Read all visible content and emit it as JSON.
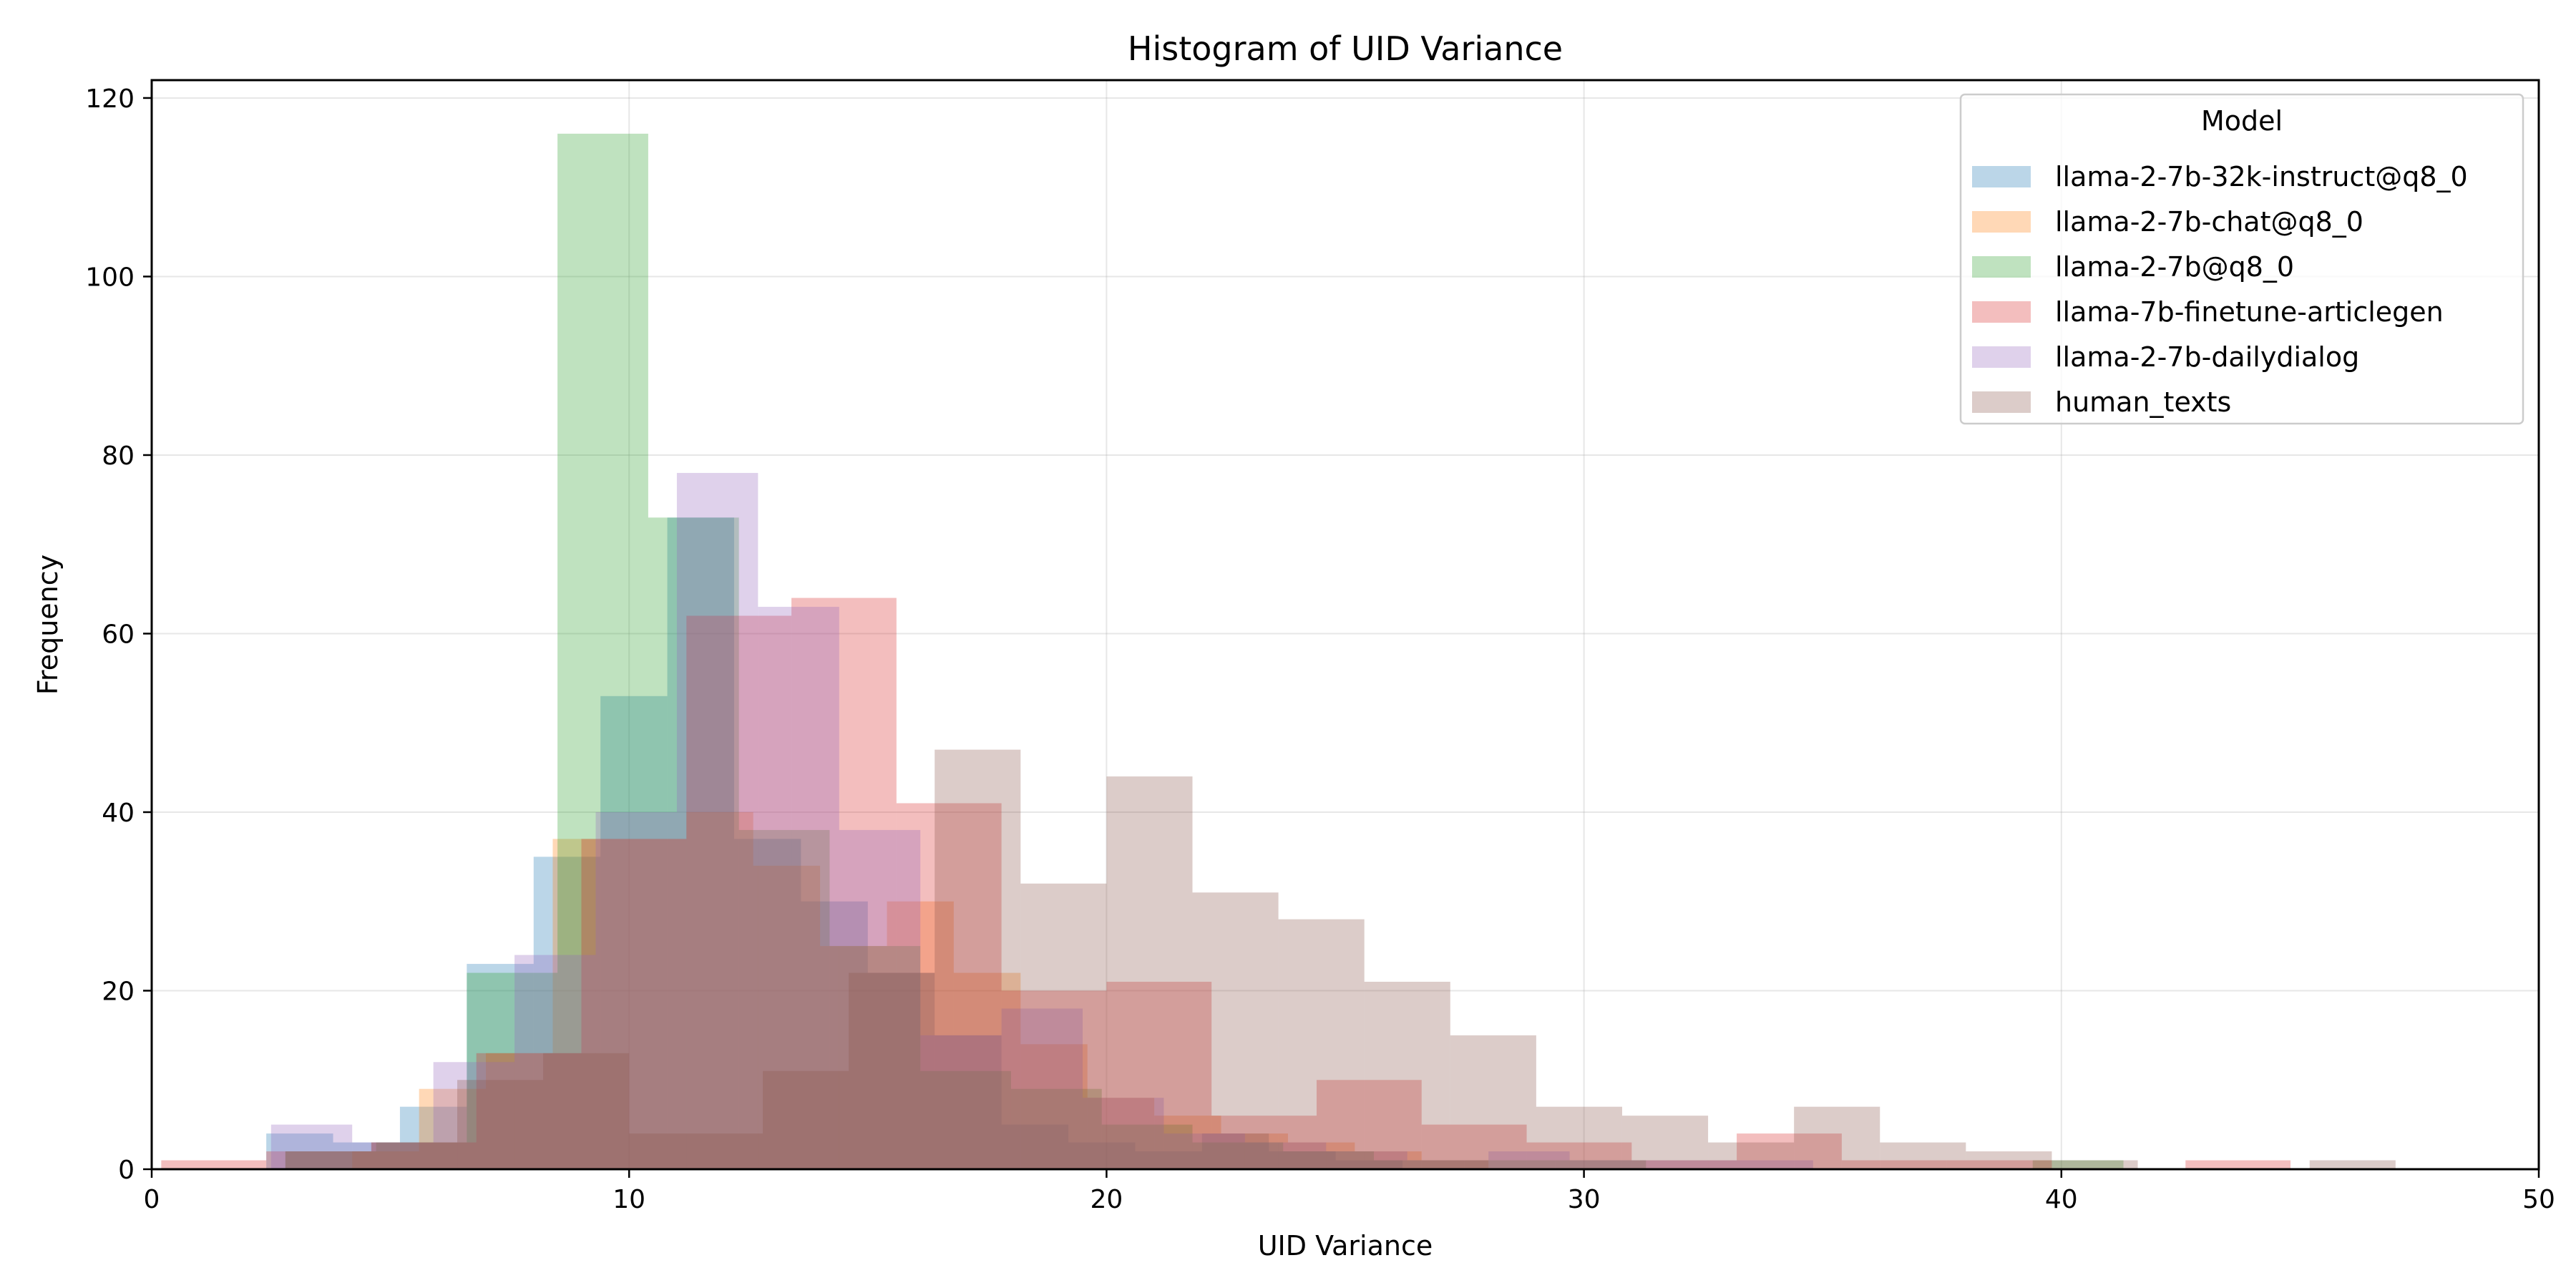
{
  "chart_data": {
    "type": "bar",
    "title": "Histogram of UID Variance",
    "xlabel": "UID Variance",
    "ylabel": "Frequency",
    "xlim": [
      0,
      50
    ],
    "ylim": [
      0,
      122
    ],
    "xticks": [
      0,
      10,
      20,
      30,
      40,
      50
    ],
    "yticks": [
      0,
      20,
      40,
      60,
      80,
      100,
      120
    ],
    "grid": true,
    "legend": {
      "title": "Model",
      "placement": "top-right"
    },
    "series": [
      {
        "name": "llama-2-7b-32k-instruct@q8_0",
        "color": "#1f77b4",
        "bins": [
          [
            2.4,
            3.8,
            4
          ],
          [
            3.8,
            5.2,
            3
          ],
          [
            5.2,
            6.6,
            7
          ],
          [
            6.6,
            8.0,
            23
          ],
          [
            8.0,
            9.4,
            35
          ],
          [
            9.4,
            10.8,
            53
          ],
          [
            10.8,
            12.2,
            73
          ],
          [
            12.2,
            13.6,
            37
          ],
          [
            13.6,
            15.0,
            30
          ],
          [
            15.0,
            16.4,
            22
          ],
          [
            16.4,
            17.8,
            15
          ],
          [
            17.8,
            19.2,
            5
          ],
          [
            19.2,
            20.6,
            3
          ],
          [
            20.6,
            22.0,
            2
          ],
          [
            22.0,
            23.4,
            4
          ],
          [
            23.4,
            24.8,
            2
          ],
          [
            24.8,
            26.2,
            1
          ]
        ]
      },
      {
        "name": "llama-2-7b-chat@q8_0",
        "color": "#ff7f0e",
        "bins": [
          [
            4.2,
            5.6,
            2
          ],
          [
            5.6,
            7.0,
            9
          ],
          [
            7.0,
            8.4,
            13
          ],
          [
            8.4,
            9.8,
            37
          ],
          [
            9.8,
            11.2,
            37
          ],
          [
            11.2,
            12.6,
            40
          ],
          [
            12.6,
            14.0,
            34
          ],
          [
            14.0,
            15.4,
            25
          ],
          [
            15.4,
            16.8,
            30
          ],
          [
            16.8,
            18.2,
            22
          ],
          [
            18.2,
            19.6,
            14
          ],
          [
            19.6,
            21.0,
            8
          ],
          [
            21.0,
            22.4,
            6
          ],
          [
            22.4,
            23.8,
            4
          ],
          [
            23.8,
            25.2,
            3
          ],
          [
            25.2,
            26.6,
            2
          ],
          [
            26.6,
            28.0,
            1
          ]
        ]
      },
      {
        "name": "llama-2-7b@q8_0",
        "color": "#2ca02c",
        "bins": [
          [
            2.8,
            4.7,
            2
          ],
          [
            4.7,
            6.6,
            3
          ],
          [
            6.6,
            8.5,
            22
          ],
          [
            8.5,
            10.4,
            116
          ],
          [
            10.4,
            12.3,
            73
          ],
          [
            12.3,
            14.2,
            38
          ],
          [
            14.2,
            16.1,
            25
          ],
          [
            16.1,
            18.0,
            11
          ],
          [
            18.0,
            19.9,
            9
          ],
          [
            19.9,
            21.8,
            5
          ],
          [
            21.8,
            23.7,
            3
          ],
          [
            23.7,
            25.6,
            2
          ],
          [
            25.6,
            27.5,
            1
          ],
          [
            27.5,
            29.4,
            1
          ],
          [
            29.4,
            31.3,
            1
          ],
          [
            39.4,
            41.3,
            1
          ]
        ]
      },
      {
        "name": "llama-7b-finetune-articlegen",
        "color": "#d62728",
        "bins": [
          [
            0.2,
            2.4,
            1
          ],
          [
            2.4,
            4.6,
            2
          ],
          [
            4.6,
            6.8,
            3
          ],
          [
            6.8,
            9.0,
            13
          ],
          [
            9.0,
            11.2,
            37
          ],
          [
            11.2,
            13.4,
            62
          ],
          [
            13.4,
            15.6,
            64
          ],
          [
            15.6,
            17.8,
            41
          ],
          [
            17.8,
            20.0,
            20
          ],
          [
            20.0,
            22.2,
            21
          ],
          [
            22.2,
            24.4,
            6
          ],
          [
            24.4,
            26.6,
            10
          ],
          [
            26.6,
            28.8,
            5
          ],
          [
            28.8,
            31.0,
            3
          ],
          [
            31.0,
            33.2,
            1
          ],
          [
            33.2,
            35.4,
            4
          ],
          [
            35.4,
            37.6,
            1
          ],
          [
            37.6,
            39.8,
            1
          ],
          [
            42.6,
            44.8,
            1
          ]
        ]
      },
      {
        "name": "llama-2-7b-dailydialog",
        "color": "#9467bd",
        "bins": [
          [
            2.5,
            4.2,
            5
          ],
          [
            4.2,
            5.9,
            3
          ],
          [
            5.9,
            7.6,
            12
          ],
          [
            7.6,
            9.3,
            24
          ],
          [
            9.3,
            11.0,
            40
          ],
          [
            11.0,
            12.7,
            78
          ],
          [
            12.7,
            14.4,
            63
          ],
          [
            14.4,
            16.1,
            38
          ],
          [
            16.1,
            17.8,
            15
          ],
          [
            17.8,
            19.5,
            18
          ],
          [
            19.5,
            21.2,
            8
          ],
          [
            21.2,
            22.9,
            4
          ],
          [
            22.9,
            24.6,
            3
          ],
          [
            24.6,
            26.3,
            2
          ],
          [
            26.3,
            28.0,
            1
          ],
          [
            28.0,
            29.7,
            2
          ],
          [
            29.7,
            31.4,
            1
          ],
          [
            31.4,
            33.1,
            1
          ],
          [
            33.1,
            34.8,
            1
          ]
        ]
      },
      {
        "name": "human_texts",
        "color": "#8c564b",
        "bins": [
          [
            2.8,
            4.6,
            2
          ],
          [
            4.6,
            6.4,
            3
          ],
          [
            6.4,
            8.2,
            10
          ],
          [
            8.2,
            10.0,
            13
          ],
          [
            10.0,
            11.0,
            4
          ],
          [
            11.0,
            12.8,
            4
          ],
          [
            12.8,
            14.6,
            11
          ],
          [
            14.6,
            16.4,
            22
          ],
          [
            16.4,
            18.2,
            47
          ],
          [
            18.2,
            20.0,
            32
          ],
          [
            20.0,
            21.8,
            44
          ],
          [
            21.8,
            23.6,
            31
          ],
          [
            23.6,
            25.4,
            28
          ],
          [
            25.4,
            27.2,
            21
          ],
          [
            27.2,
            29.0,
            15
          ],
          [
            29.0,
            30.8,
            7
          ],
          [
            30.8,
            32.6,
            6
          ],
          [
            32.6,
            34.4,
            3
          ],
          [
            34.4,
            36.2,
            7
          ],
          [
            36.2,
            38.0,
            3
          ],
          [
            38.0,
            39.8,
            2
          ],
          [
            39.8,
            41.6,
            1
          ],
          [
            45.2,
            47.0,
            1
          ]
        ]
      }
    ]
  }
}
